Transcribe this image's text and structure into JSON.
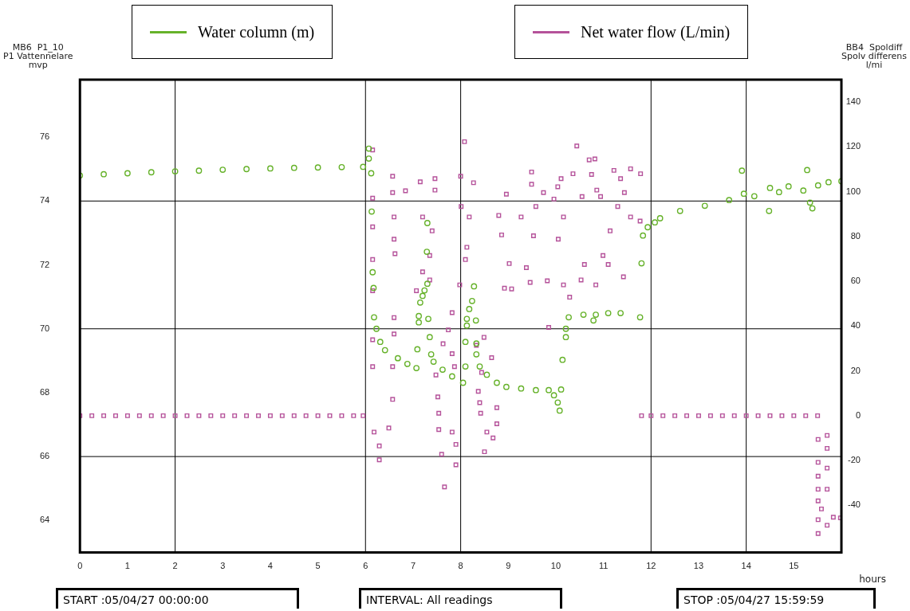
{
  "chart_data": {
    "type": "scatter",
    "ylabel": "MB6  P1_10\nP1 Vattennelare\nmvp",
    "y2label": "BB4  Spoldiff\nSpolv differens\nl/mi",
    "xlabel": "hours",
    "annotations": [
      "START :05/04/27 00:00:00",
      "INTERVAL: All readings",
      "STOP :05/04/27 15:59:59"
    ],
    "legend": "top",
    "grid": false,
    "xlim": [
      0,
      16
    ],
    "xticks": [
      0,
      1,
      2,
      3,
      4,
      5,
      6,
      7,
      8,
      9,
      10,
      11,
      12,
      13,
      14,
      15
    ],
    "ylim": [
      63,
      77.8
    ],
    "yticks": [
      64,
      66,
      68,
      70,
      72,
      74,
      76
    ],
    "y2lim": [
      -61,
      150
    ],
    "y2ticks": [
      -40,
      -20,
      0,
      20,
      40,
      60,
      80,
      100,
      120,
      140
    ],
    "ref_lines": [
      {
        "axis": "x",
        "value": 2,
        "color": "#000000"
      },
      {
        "axis": "x",
        "value": 6,
        "color": "#000000"
      },
      {
        "axis": "x",
        "value": 8,
        "color": "#000000"
      },
      {
        "axis": "x",
        "value": 12,
        "color": "#000000"
      },
      {
        "axis": "x",
        "value": 14,
        "color": "#000000"
      },
      {
        "axis": "y",
        "value": 74,
        "color": "#000000"
      },
      {
        "axis": "y",
        "value": 70,
        "color": "#000000"
      },
      {
        "axis": "y",
        "value": 66,
        "color": "#000000"
      }
    ],
    "series": [
      {
        "name": "Water column (m)",
        "color": "#66b22a",
        "marker": "circle",
        "axis": "y",
        "x": [
          0,
          0.5,
          1,
          1.5,
          2,
          2.5,
          3,
          3.5,
          4,
          4.5,
          5,
          5.5,
          5.95,
          6.07,
          6.07,
          6.12,
          6.13,
          6.15,
          6.17,
          6.18,
          6.23,
          6.31,
          6.41,
          6.68,
          6.88,
          7.07,
          7.09,
          7.12,
          7.12,
          7.15,
          7.2,
          7.24,
          7.3,
          7.29,
          7.3,
          7.32,
          7.35,
          7.38,
          7.43,
          7.62,
          7.82,
          8.05,
          8.1,
          8.1,
          8.13,
          8.13,
          8.18,
          8.24,
          8.28,
          8.32,
          8.33,
          8.33,
          8.4,
          8.55,
          8.76,
          8.96,
          9.27,
          9.58,
          9.85,
          9.96,
          10.04,
          10.08,
          10.11,
          10.14,
          10.21,
          10.21,
          10.27,
          10.58,
          10.79,
          10.84,
          11.1,
          11.36,
          11.77,
          11.8,
          11.83,
          11.93,
          12.08,
          12.19,
          12.61,
          13.13,
          13.64,
          13.91,
          13.95,
          14.17,
          14.48,
          14.5,
          14.69,
          14.89,
          15.2,
          15.28,
          15.34,
          15.39,
          15.51,
          15.73,
          16.0
        ],
        "values": [
          74.8,
          74.84,
          74.87,
          74.9,
          74.93,
          74.95,
          74.98,
          75.0,
          75.02,
          75.04,
          75.05,
          75.06,
          75.07,
          75.64,
          75.33,
          74.87,
          73.67,
          71.77,
          71.28,
          70.36,
          70.0,
          69.59,
          69.33,
          69.08,
          68.9,
          68.77,
          69.36,
          70.2,
          70.4,
          70.82,
          71.03,
          71.2,
          71.41,
          72.41,
          73.31,
          70.31,
          69.74,
          69.2,
          68.97,
          68.72,
          68.51,
          68.31,
          68.82,
          69.59,
          70.1,
          70.31,
          70.62,
          70.87,
          71.33,
          70.26,
          69.54,
          69.2,
          68.82,
          68.56,
          68.31,
          68.18,
          68.13,
          68.08,
          68.08,
          67.92,
          67.69,
          67.44,
          68.1,
          69.03,
          69.74,
          70.0,
          70.36,
          70.44,
          70.26,
          70.44,
          70.49,
          70.49,
          70.36,
          72.05,
          72.92,
          73.18,
          73.33,
          73.46,
          73.69,
          73.85,
          74.03,
          74.95,
          74.23,
          74.15,
          73.69,
          74.41,
          74.28,
          74.46,
          74.33,
          74.97,
          73.95,
          73.77,
          74.49,
          74.59,
          74.62
        ]
      },
      {
        "name": "Net water flow (L/min)",
        "color": "#b5529a",
        "marker": "square",
        "axis": "y2",
        "x": [
          0,
          0.25,
          0.5,
          0.75,
          1,
          1.25,
          1.5,
          1.75,
          2,
          2.25,
          2.5,
          2.75,
          3,
          3.25,
          3.5,
          3.75,
          4,
          4.25,
          4.5,
          4.75,
          5,
          5.25,
          5.5,
          5.75,
          5.95,
          6.15,
          6.15,
          6.15,
          6.15,
          6.15,
          6.15,
          6.15,
          6.18,
          6.29,
          6.29,
          6.57,
          6.57,
          6.6,
          6.6,
          6.62,
          6.6,
          6.6,
          6.57,
          6.57,
          6.49,
          6.84,
          7.15,
          7.46,
          7.46,
          7.2,
          7.4,
          7.35,
          7.2,
          7.07,
          7.35,
          7.82,
          7.74,
          7.63,
          7.82,
          7.87,
          7.48,
          7.52,
          7.54,
          7.54,
          7.82,
          7.9,
          7.6,
          7.9,
          7.66,
          8.08,
          8.0,
          8.27,
          8.01,
          8.18,
          8.13,
          8.1,
          7.98,
          8.49,
          8.33,
          8.65,
          8.44,
          8.37,
          8.4,
          8.76,
          8.42,
          8.55,
          8.68,
          8.5,
          8.76,
          8.96,
          8.8,
          8.86,
          9.02,
          9.07,
          8.92,
          9.27,
          9.49,
          9.49,
          9.74,
          9.58,
          9.53,
          9.38,
          9.46,
          9.82,
          9.85,
          9.96,
          10.04,
          10.11,
          10.16,
          10.05,
          10.16,
          10.29,
          10.36,
          10.44,
          10.55,
          10.7,
          10.82,
          10.75,
          10.94,
          10.86,
          10.99,
          10.84,
          10.53,
          11.22,
          11.36,
          11.57,
          11.78,
          11.44,
          11.3,
          11.14,
          11.42,
          11.1,
          11.57,
          11.77,
          10.6,
          11.8,
          12.0,
          12.25,
          12.5,
          12.75,
          13.0,
          13.25,
          13.5,
          13.75,
          14.0,
          14.25,
          14.5,
          14.75,
          15.0,
          15.25,
          15.5,
          15.51,
          15.7,
          15.7,
          15.51,
          15.7,
          15.51,
          15.51,
          15.7,
          15.51,
          15.58,
          15.51,
          15.7,
          15.51,
          15.83,
          15.98
        ],
        "values": [
          0,
          0,
          0,
          0,
          0,
          0,
          0,
          0,
          0,
          0,
          0,
          0,
          0,
          0,
          0,
          0,
          0,
          0,
          0,
          0,
          0,
          0,
          0,
          0,
          0,
          118.6,
          97.1,
          84.3,
          69.7,
          55.8,
          33.9,
          21.9,
          -7.3,
          -13.5,
          -19.7,
          106.9,
          99.6,
          88.7,
          78.8,
          72.3,
          43.8,
          36.5,
          21.9,
          7.3,
          -5.5,
          100.4,
          104.4,
          105.8,
          100.7,
          88.7,
          82.5,
          71.5,
          64.2,
          55.8,
          60.6,
          46.0,
          38.3,
          32.1,
          27.7,
          21.9,
          18.2,
          8.4,
          1.1,
          -6.2,
          -7.3,
          -12.8,
          -17.2,
          -21.9,
          -31.8,
          122.3,
          106.9,
          104.0,
          93.4,
          88.7,
          75.2,
          69.7,
          58.4,
          35.0,
          31.4,
          25.9,
          19.3,
          10.9,
          5.8,
          3.6,
          1.1,
          -7.3,
          -9.9,
          -16.1,
          -3.6,
          98.9,
          89.4,
          80.7,
          67.9,
          56.6,
          56.9,
          88.7,
          108.8,
          103.3,
          99.6,
          93.4,
          80.3,
          66.1,
          59.5,
          60.2,
          39.4,
          96.7,
          102.2,
          105.8,
          88.7,
          78.8,
          58.4,
          52.9,
          108.0,
          120.4,
          97.8,
          114.2,
          114.6,
          107.7,
          97.8,
          100.7,
          71.5,
          58.4,
          60.6,
          109.5,
          105.8,
          110.2,
          108.0,
          99.6,
          93.4,
          82.5,
          62.0,
          67.5,
          88.7,
          86.9,
          67.5,
          0,
          0,
          0,
          0,
          0,
          0,
          0,
          0,
          0,
          0,
          0,
          0,
          0,
          0,
          0,
          0,
          -10.6,
          -8.8,
          -14.6,
          -20.8,
          -23.4,
          -27.0,
          -32.8,
          -32.8,
          -38.0,
          -41.6,
          -46.4,
          -48.9,
          -52.6,
          -45.3,
          -45.6
        ]
      }
    ]
  }
}
